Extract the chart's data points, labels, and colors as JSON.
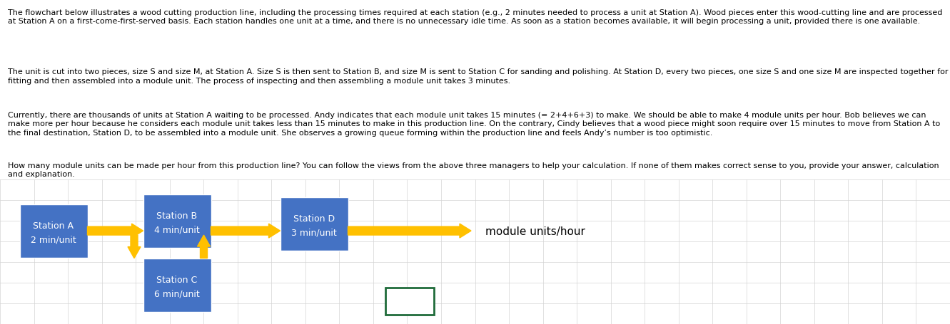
{
  "bg_color_text": "#fce4d6",
  "bg_color_chart": "#ffffff",
  "grid_color": "#d4d4d4",
  "text_paragraphs": [
    "The flowchart below illustrates a wood cutting production line, including the processing times required at each station (e.g., 2 minutes needed to process a unit at Station A). Wood pieces enter this wood-cutting line and are processed at Station A on a first-come-first-served basis. Each station handles one unit at a time, and there is no unnecessary idle time. As soon as a station becomes available, it will begin processing a unit, provided there is one available.",
    "The unit is cut into two pieces, size S and size M, at Station A. Size S is then sent to Station B, and size M is sent to Station C for sanding and polishing. At Station D, every two pieces, one size S and one size M are inspected together for fitting and then assembled into a module unit. The process of inspecting and then assembling a module unit takes 3 minutes.",
    "Currently, there are thousands of units at Station A waiting to be processed. Andy indicates that each module unit takes 15 minutes (= 2+4+6+3) to make. We should be able to make 4 module units per hour. Bob believes we can make more per hour because he considers each module unit takes less than 15 minutes to make in this production line. On the contrary, Cindy believes that a wood piece might soon require over 15 minutes to move from Station A to the final destination, Station D, to be assembled into a module unit. She observes a growing queue forming within the production line and feels Andy’s number is too optimistic.",
    "How many module units can be made per hour from this production line? You can follow the views from the above three managers to help your calculation. If none of them makes correct sense to you, provide your answer, calculation and explanation."
  ],
  "station_color": "#4472c4",
  "station_text_color": "#ffffff",
  "arrow_color": "#ffc000",
  "answer_box_color": "#1f6b3a",
  "label_module": "module units/hour",
  "text_split": 0.555,
  "chart_split": 0.445
}
